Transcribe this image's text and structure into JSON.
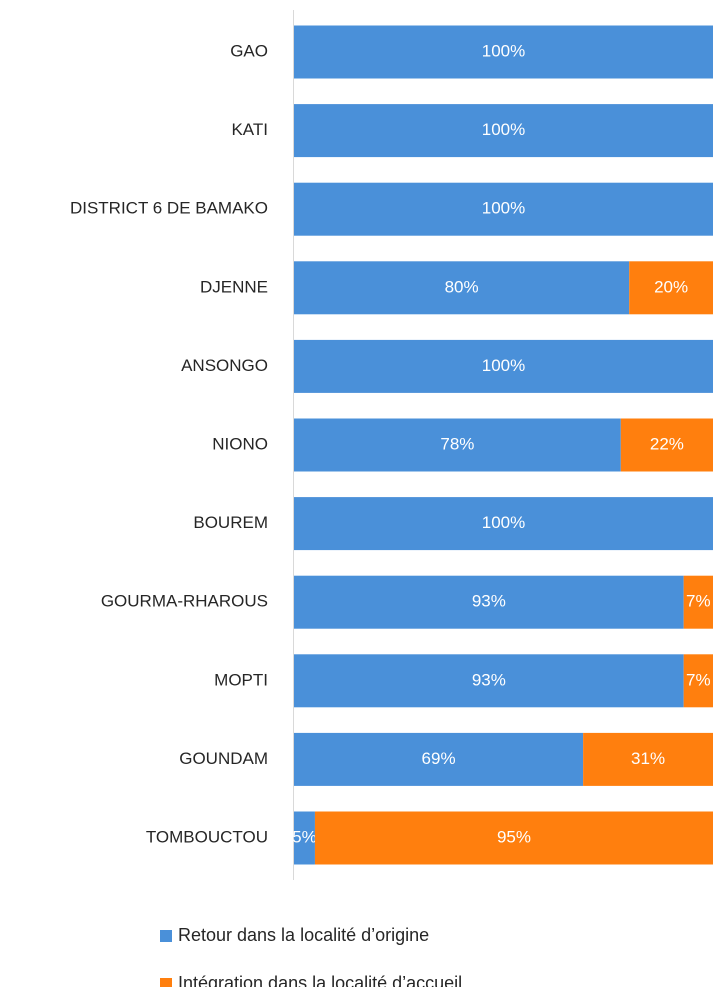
{
  "chart_data": {
    "type": "stacked-bar-horizontal",
    "categories": [
      "GAO",
      "KATI",
      "DISTRICT 6 DE BAMAKO",
      "DJENNE",
      "ANSONGO",
      "NIONO",
      "BOUREM",
      "GOURMA-RHAROUS",
      "MOPTI",
      "GOUNDAM",
      "TOMBOUCTOU"
    ],
    "series": [
      {
        "name": "Retour dans la localité d’origine",
        "color": "#4a90d9",
        "values": [
          100,
          100,
          100,
          80,
          100,
          78,
          100,
          93,
          93,
          69,
          5
        ],
        "value_labels": [
          "100%",
          "100%",
          "100%",
          "80%",
          "100%",
          "78%",
          "100%",
          "93%",
          "93%",
          "69%",
          "5%"
        ]
      },
      {
        "name": "Intégration dans la localité d’accueil",
        "color": "#ff7f0e",
        "values": [
          null,
          null,
          null,
          20,
          null,
          22,
          null,
          7,
          7,
          31,
          95
        ],
        "value_labels": [
          null,
          null,
          null,
          "20%",
          null,
          "22%",
          null,
          "7%",
          "7%",
          "31%",
          "95%"
        ]
      }
    ],
    "xlim": [
      0,
      100
    ]
  }
}
